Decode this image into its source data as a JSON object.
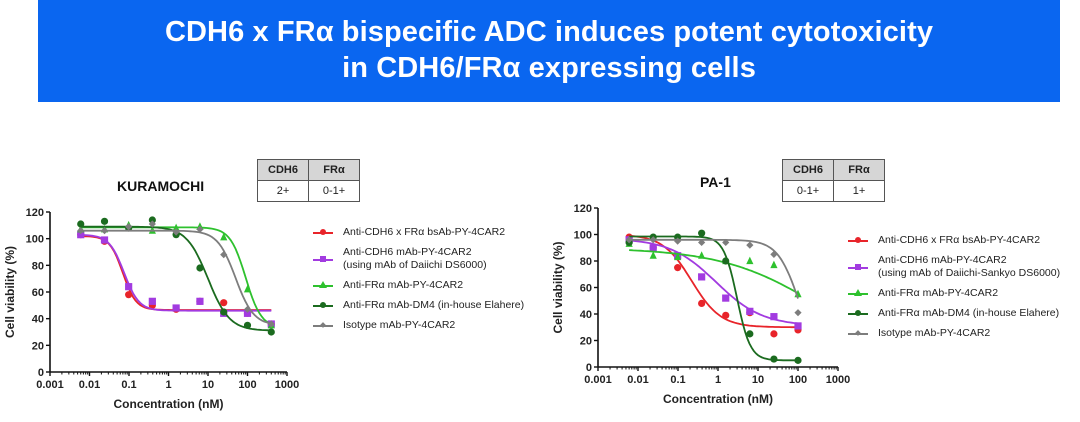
{
  "header": {
    "title_line1": "CDH6 x FRα bispecific ADC induces potent cytotoxicity",
    "title_line2": "in CDH6/FRα expressing cells"
  },
  "panels": [
    {
      "cell_line": "KURAMOCHI",
      "expression_table": {
        "headers": [
          "CDH6",
          "FRα"
        ],
        "values": [
          "2+",
          "0-1+"
        ]
      },
      "legend": [
        "Anti-CDH6 x FRα bsAb-PY-4CAR2",
        "Anti-CDH6 mAb-PY-4CAR2\n(using mAb of Daiichi DS6000)",
        "Anti-FRα mAb-PY-4CAR2",
        "Anti-FRα mAb-DM4 (in-house Elahere)",
        "Isotype mAb-PY-4CAR2"
      ]
    },
    {
      "cell_line": "PA-1",
      "expression_table": {
        "headers": [
          "CDH6",
          "FRα"
        ],
        "values": [
          "0-1+",
          "1+"
        ]
      },
      "legend": [
        "Anti-CDH6 x FRα bsAb-PY-4CAR2",
        "Anti-CDH6 mAb-PY-4CAR2\n(using mAb of Daiichi-Sankyo DS6000)",
        "Anti-FRα mAb-PY-4CAR2",
        "Anti-FRα mAb-DM4 (in-house Elahere)",
        "Isotype mAb-PY-4CAR2"
      ]
    }
  ],
  "colors": {
    "red": "#e8242a",
    "purple": "#a23be0",
    "green": "#2ec12e",
    "dark_green": "#1b6b1f",
    "gray": "#7d7d7d",
    "banner": "#0a66f0"
  },
  "chart_data": [
    {
      "type": "scatter",
      "title": "KURAMOCHI",
      "xlabel": "Concentration (nM)",
      "ylabel": "Cell viability (%)",
      "xscale": "log",
      "xlim": [
        0.001,
        1000
      ],
      "ylim": [
        0,
        120
      ],
      "xticks": [
        "0.001",
        "0.01",
        "0.1",
        "1",
        "10",
        "100",
        "1000"
      ],
      "yticks": [
        0,
        20,
        40,
        60,
        80,
        100,
        120
      ],
      "legend_position": "right",
      "series": [
        {
          "name": "Anti-CDH6 x FRα bsAb-PY-4CAR2",
          "color": "#e8242a",
          "marker": "circle",
          "x": [
            0.006,
            0.024,
            0.098,
            0.39,
            1.56,
            6.25,
            25,
            100,
            400
          ],
          "y": [
            103,
            98,
            58,
            50,
            47,
            53,
            52,
            44,
            36
          ],
          "fit": {
            "top": 102,
            "bottom": 46.5,
            "ic50": 0.07,
            "hill": 2.6
          }
        },
        {
          "name": "Anti-CDH6 mAb-PY-4CAR2 (using mAb of Daiichi DS6000)",
          "color": "#a23be0",
          "marker": "square",
          "x": [
            0.006,
            0.024,
            0.098,
            0.39,
            1.56,
            6.25,
            25,
            100,
            400
          ],
          "y": [
            103,
            99,
            64,
            53,
            48,
            53,
            44,
            44,
            36
          ],
          "fit": {
            "top": 103,
            "bottom": 46,
            "ic50": 0.075,
            "hill": 2.3
          }
        },
        {
          "name": "Anti-FRα mAb-PY-4CAR2",
          "color": "#2ec12e",
          "marker": "triangle",
          "x": [
            0.006,
            0.024,
            0.098,
            0.39,
            1.56,
            6.25,
            25,
            100,
            400
          ],
          "y": [
            107,
            107,
            110,
            106,
            108,
            109,
            101,
            62,
            35
          ],
          "fit": {
            "top": 108.5,
            "bottom": 33,
            "ic50": 90,
            "hill": 2.2
          }
        },
        {
          "name": "Anti-FRα mAb-DM4 (in-house Elahere)",
          "color": "#1b6b1f",
          "marker": "circle",
          "x": [
            0.006,
            0.024,
            0.098,
            0.39,
            1.56,
            6.25,
            25,
            100,
            400
          ],
          "y": [
            111,
            113,
            108,
            114,
            103,
            78,
            45,
            35,
            30
          ],
          "fit": {
            "top": 109,
            "bottom": 31,
            "ic50": 10,
            "hill": 1.6
          }
        },
        {
          "name": "Isotype mAb-PY-4CAR2",
          "color": "#7d7d7d",
          "marker": "diamond",
          "x": [
            0.006,
            0.024,
            0.098,
            0.39,
            1.56,
            6.25,
            25,
            100,
            400
          ],
          "y": [
            106,
            106,
            109,
            111,
            105,
            107,
            88,
            47,
            36
          ],
          "fit": {
            "top": 106,
            "bottom": 35,
            "ic50": 50,
            "hill": 1.9
          }
        }
      ]
    },
    {
      "type": "scatter",
      "title": "PA-1",
      "xlabel": "Concentration (nM)",
      "ylabel": "Cell viability (%)",
      "xscale": "log",
      "xlim": [
        0.001,
        1000
      ],
      "ylim": [
        0,
        120
      ],
      "xticks": [
        "0.001",
        "0.01",
        "0.1",
        "1",
        "10",
        "100",
        "1000"
      ],
      "yticks": [
        0,
        20,
        40,
        60,
        80,
        100,
        120
      ],
      "legend_position": "right",
      "series": [
        {
          "name": "Anti-CDH6 x FRα bsAb-PY-4CAR2",
          "color": "#e8242a",
          "marker": "circle",
          "x": [
            0.006,
            0.024,
            0.098,
            0.39,
            1.56,
            6.25,
            25,
            100
          ],
          "y": [
            98,
            90,
            75,
            48,
            39,
            41,
            25,
            28
          ],
          "fit": {
            "top": 100,
            "bottom": 30,
            "ic50": 0.22,
            "hill": 1.2
          }
        },
        {
          "name": "Anti-CDH6 mAb-PY-4CAR2 (using mAb of Daiichi-Sankyo DS6000)",
          "color": "#a23be0",
          "marker": "square",
          "x": [
            0.006,
            0.024,
            0.098,
            0.39,
            1.56,
            6.25,
            25,
            100
          ],
          "y": [
            96,
            90,
            84,
            68,
            52,
            42,
            38,
            31
          ],
          "fit": {
            "top": 97,
            "bottom": 31,
            "ic50": 0.9,
            "hill": 0.75
          }
        },
        {
          "name": "Anti-FRα mAb-PY-4CAR2",
          "color": "#2ec12e",
          "marker": "triangle",
          "x": [
            0.006,
            0.024,
            0.098,
            0.39,
            1.56,
            6.25,
            25,
            100
          ],
          "y": [
            93,
            84,
            83,
            84,
            80,
            80,
            77,
            55
          ],
          "fit": {
            "top": 90,
            "bottom": 0,
            "ic50": 400,
            "hill": 0.35
          }
        },
        {
          "name": "Anti-FRα mAb-DM4 (in-house Elahere)",
          "color": "#1b6b1f",
          "marker": "circle",
          "x": [
            0.006,
            0.024,
            0.098,
            0.39,
            1.56,
            6.25,
            25,
            100
          ],
          "y": [
            94,
            98,
            98,
            101,
            80,
            25,
            6,
            5
          ],
          "fit": {
            "top": 98.5,
            "bottom": 5,
            "ic50": 3.0,
            "hill": 2.6
          }
        },
        {
          "name": "Isotype mAb-PY-4CAR2",
          "color": "#7d7d7d",
          "marker": "diamond",
          "x": [
            0.006,
            0.024,
            0.098,
            0.39,
            1.56,
            6.25,
            25,
            100
          ],
          "y": [
            96,
            96,
            95,
            94,
            94,
            92,
            85,
            41
          ],
          "fit": {
            "top": 96,
            "bottom": 0,
            "ic50": 110,
            "hill": 1.6
          }
        }
      ]
    }
  ]
}
